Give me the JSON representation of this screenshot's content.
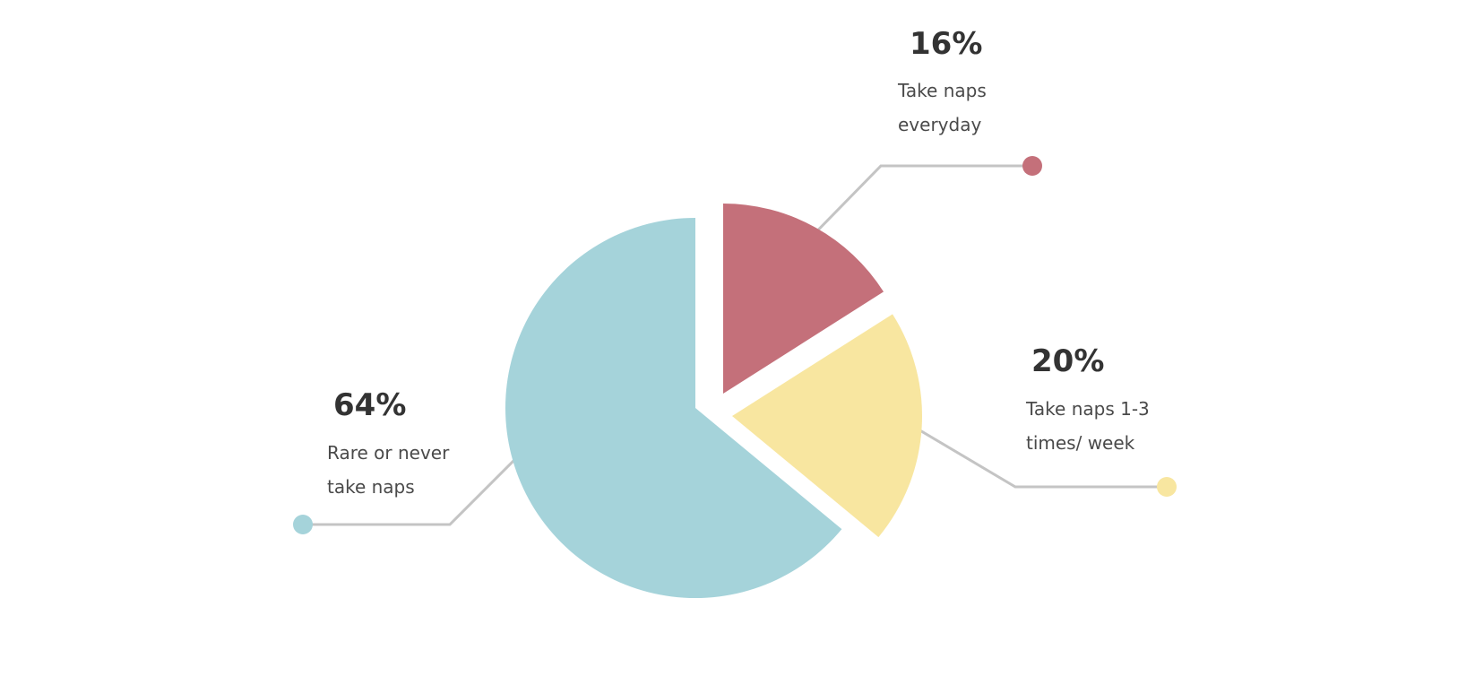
{
  "chart_data": {
    "type": "pie",
    "title": "",
    "unit": "%",
    "slices": [
      {
        "name": "everyday",
        "value": 16,
        "value_label": "16%",
        "label_lines": [
          "Take naps",
          "everyday"
        ],
        "color": "#C4707A"
      },
      {
        "name": "weekly",
        "value": 20,
        "value_label": "20%",
        "label_lines": [
          "Take naps 1-3",
          "times/ week"
        ],
        "color": "#F8E6A0"
      },
      {
        "name": "rarely",
        "value": 64,
        "value_label": "64%",
        "label_lines": [
          "Rare or never",
          "take naps"
        ],
        "color": "#A5D3DA"
      }
    ],
    "start": "top, clockwise",
    "exploded": true
  }
}
